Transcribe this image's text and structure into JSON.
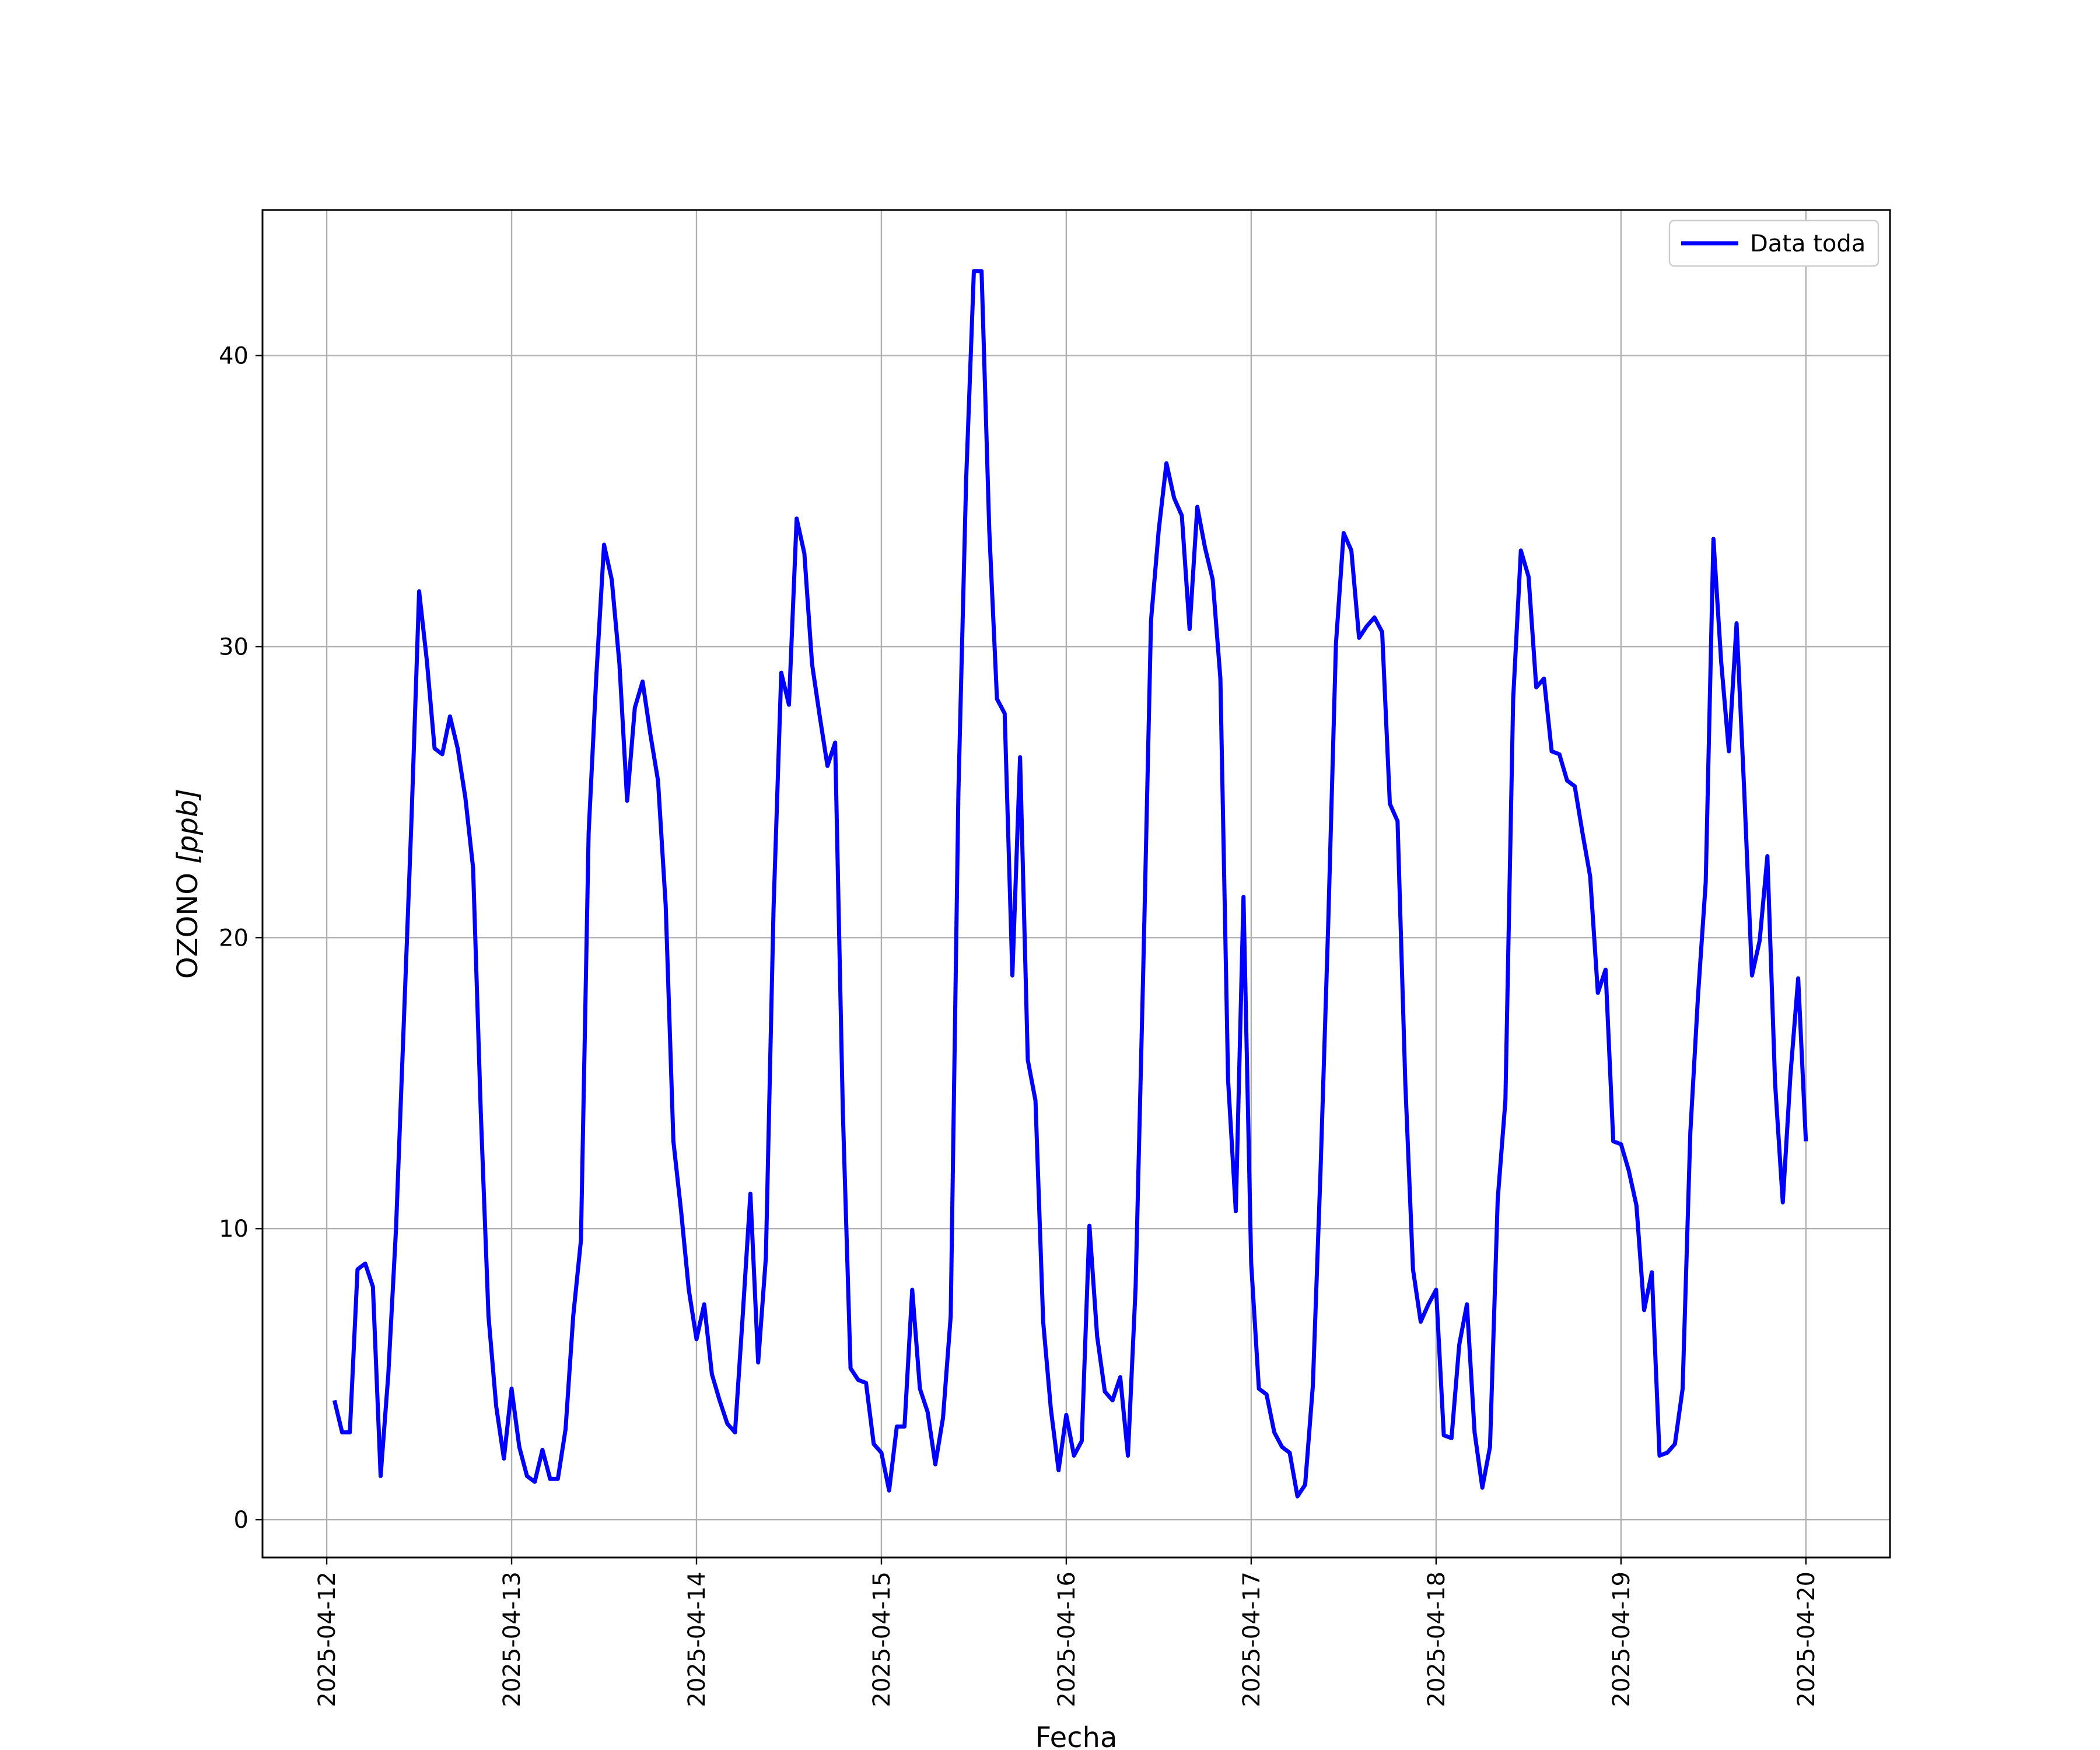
{
  "chart_data": {
    "type": "line",
    "title": "",
    "xlabel": "Fecha",
    "ylabel_text": "OZONO ",
    "ylabel_unit": "[ppb]",
    "x_ticks": [
      "2025-04-12",
      "2025-04-13",
      "2025-04-14",
      "2025-04-15",
      "2025-04-16",
      "2025-04-17",
      "2025-04-18",
      "2025-04-19",
      "2025-04-20"
    ],
    "y_ticks": [
      "0",
      "10",
      "20",
      "30",
      "40"
    ],
    "xlim": [
      "2025-04-11 15:40",
      "2025-04-20 10:55"
    ],
    "ylim": [
      -1.3,
      45.0
    ],
    "grid": true,
    "legend": {
      "position": "top-right"
    },
    "series": [
      {
        "name": "Data toda",
        "color": "#0000ff",
        "x_start": "2025-04-12 01:00",
        "x_step_hours": 1,
        "values": [
          4.1,
          3.0,
          3.0,
          8.6,
          8.8,
          8.0,
          1.5,
          5.0,
          10.0,
          17.0,
          24.0,
          31.9,
          29.5,
          26.5,
          26.3,
          27.6,
          26.5,
          24.8,
          22.4,
          14.0,
          7.0,
          3.9,
          2.1,
          4.5,
          2.5,
          1.5,
          1.3,
          2.4,
          1.4,
          1.4,
          3.1,
          7.0,
          9.6,
          23.6,
          29.0,
          33.5,
          32.3,
          29.4,
          24.7,
          27.9,
          28.8,
          27.0,
          25.4,
          21.1,
          13.0,
          10.6,
          7.9,
          6.2,
          7.4,
          5.0,
          4.1,
          3.3,
          3.0,
          7.0,
          11.2,
          5.4,
          9.0,
          21.0,
          29.1,
          28.0,
          34.4,
          33.2,
          29.4,
          27.6,
          25.9,
          26.7,
          14.0,
          5.2,
          4.8,
          4.7,
          2.6,
          2.3,
          1.0,
          3.2,
          3.2,
          7.9,
          4.5,
          3.7,
          1.9,
          3.5,
          7.0,
          25.0,
          35.7,
          42.9,
          42.9,
          34.0,
          28.2,
          27.7,
          18.7,
          26.2,
          15.8,
          14.4,
          6.8,
          3.8,
          1.7,
          3.6,
          2.2,
          2.7,
          10.1,
          6.3,
          4.4,
          4.1,
          4.9,
          2.2,
          8.0,
          19.0,
          30.9,
          34.0,
          36.3,
          35.1,
          34.5,
          30.6,
          34.8,
          33.4,
          32.3,
          28.9,
          15.1,
          10.6,
          21.4,
          8.8,
          4.5,
          4.3,
          3.0,
          2.5,
          2.3,
          0.8,
          1.2,
          4.6,
          12.0,
          20.5,
          30.1,
          33.9,
          33.3,
          30.3,
          30.7,
          31.0,
          30.5,
          24.6,
          24.0,
          15.0,
          8.6,
          6.8,
          7.4,
          7.9,
          2.9,
          2.8,
          6.0,
          7.4,
          3.0,
          1.1,
          2.5,
          11.0,
          14.4,
          28.2,
          33.3,
          32.4,
          28.6,
          28.9,
          26.4,
          26.3,
          25.4,
          25.2,
          23.6,
          22.1,
          18.1,
          18.9,
          13.0,
          12.9,
          12.0,
          10.8,
          7.2,
          8.5,
          2.2,
          2.3,
          2.6,
          4.5,
          13.3,
          18.0,
          21.9,
          33.7,
          29.5,
          26.4,
          30.8,
          25.0,
          18.7,
          19.9,
          22.8,
          15.0,
          10.9,
          15.3,
          18.6,
          13.0
        ]
      }
    ]
  }
}
